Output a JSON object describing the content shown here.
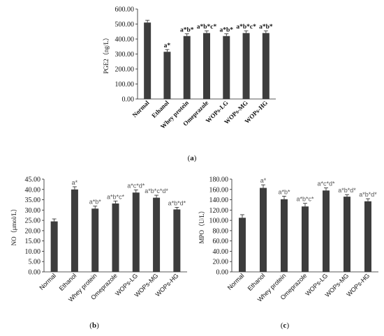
{
  "chart_data": [
    {
      "type": "bar",
      "panel_label": "(a)",
      "ylabel": "PGE2（ng/L）",
      "ylim": [
        0,
        600
      ],
      "yticks": [
        "0.00",
        "100.00",
        "200.00",
        "300.00",
        "400.00",
        "500.00",
        "600.00"
      ],
      "categories": [
        "Normal",
        "Ethanol",
        "Whey protein",
        "Omeprazole",
        "WOPs-LG",
        "WOPs-MG",
        "WOPs-HG"
      ],
      "values": [
        510,
        315,
        420,
        440,
        420,
        440,
        440
      ],
      "errors": [
        15,
        15,
        15,
        15,
        15,
        15,
        15
      ],
      "annotations": [
        "",
        "a*",
        "a*b*",
        "a*b*c*",
        "a*b*",
        "a*b*c*",
        "a*b*"
      ],
      "bar_color": "#3d3d3d"
    },
    {
      "type": "bar",
      "panel_label": "(b)",
      "ylabel": "NO（μmol/L）",
      "ylim": [
        0,
        45
      ],
      "yticks": [
        "0.00",
        "5.00",
        "10.00",
        "15.00",
        "20.00",
        "25.00",
        "30.00",
        "35.00",
        "40.00",
        "45.00"
      ],
      "categories": [
        "Normal",
        "Ethanol",
        "Whey protein",
        "Omeprazole",
        "WOPs-LG",
        "WOPs-MG",
        "WOPs-HG"
      ],
      "values": [
        24.5,
        40,
        30.7,
        33.2,
        38.5,
        36,
        30.3
      ],
      "errors": [
        1.2,
        1.3,
        1.2,
        1.2,
        1.3,
        1.2,
        1.0
      ],
      "annotations": [
        "",
        "a*",
        "a*b*",
        "a*b*c*",
        "a*c*d*",
        "a*b*c*d*",
        "a*b*d*"
      ],
      "bar_color": "#3d3d3d"
    },
    {
      "type": "bar",
      "panel_label": "(c)",
      "ylabel": "MPO（U/L）",
      "ylim": [
        0,
        180
      ],
      "yticks": [
        "0.00",
        "20.00",
        "40.00",
        "60.00",
        "80.00",
        "100.00",
        "120.00",
        "140.00",
        "160.00",
        "180.00"
      ],
      "categories": [
        "Normal",
        "Ethanol",
        "Whey protein",
        "Omeprazole",
        "WOPs-LG",
        "WOPs-MG",
        "WOPs-HG"
      ],
      "values": [
        105,
        163,
        141,
        127,
        158,
        146,
        137
      ],
      "errors": [
        6,
        6,
        6,
        6,
        5,
        4,
        5
      ],
      "annotations": [
        "",
        "a*",
        "a*b*",
        "a*b*c*",
        "a*c*d*",
        "a*b*d*",
        "a*b*d*"
      ],
      "bar_color": "#3d3d3d"
    }
  ]
}
